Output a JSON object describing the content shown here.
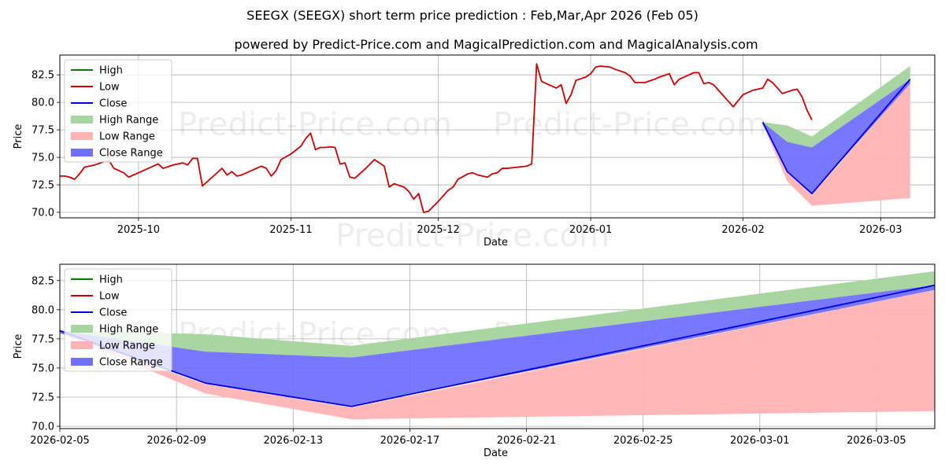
{
  "title": "SEEGX (SEEGX) short term price prediction : Feb,Mar,Apr 2026 (Feb 05)",
  "subtitle": "powered by Predict-Price.com and MagicalPrediction.com and MagicalAnalysis.com",
  "watermark": "Predict-Price.com",
  "colors": {
    "high": "#008000",
    "low": "#cc0000",
    "close": "#0000dd",
    "high_range": "#a8d5a0",
    "low_range": "#ffb3b3",
    "close_range": "#7070ff",
    "grid": "#b0b0b0"
  },
  "chart_data": [
    {
      "type": "line",
      "panel": "top",
      "xlabel": "Date",
      "ylabel": "Price",
      "x_range": [
        "2025-09-15",
        "2026-03-12"
      ],
      "ylim": [
        69.5,
        84.3
      ],
      "yticks": [
        70.0,
        72.5,
        75.0,
        77.5,
        80.0,
        82.5
      ],
      "ytick_labels": [
        "70.0",
        "72.5",
        "75.0",
        "77.5",
        "80.0",
        "82.5"
      ],
      "xticks": [
        "2025-10-01",
        "2025-11-01",
        "2025-12-01",
        "2026-01-01",
        "2026-02-01",
        "2026-03-01"
      ],
      "xtick_labels": [
        "2025-10",
        "2025-11",
        "2025-12",
        "2026-01",
        "2026-02",
        "2026-03"
      ],
      "grid": true,
      "legend_position": "top-left",
      "legend": [
        "High",
        "Low",
        "Close",
        "High Range",
        "Low Range",
        "Close Range"
      ],
      "history": [
        [
          "2025-09-15",
          73.3
        ],
        [
          "2025-09-16",
          73.3
        ],
        [
          "2025-09-17",
          73.2
        ],
        [
          "2025-09-18",
          73.0
        ],
        [
          "2025-09-19",
          73.5
        ],
        [
          "2025-09-20",
          74.1
        ],
        [
          "2025-09-22",
          74.3
        ],
        [
          "2025-09-24",
          74.6
        ],
        [
          "2025-09-25",
          74.7
        ],
        [
          "2025-09-26",
          74.0
        ],
        [
          "2025-09-28",
          73.6
        ],
        [
          "2025-09-29",
          73.2
        ],
        [
          "2025-10-01",
          73.6
        ],
        [
          "2025-10-03",
          74.0
        ],
        [
          "2025-10-05",
          74.4
        ],
        [
          "2025-10-06",
          74.0
        ],
        [
          "2025-10-08",
          74.3
        ],
        [
          "2025-10-10",
          74.5
        ],
        [
          "2025-10-11",
          74.3
        ],
        [
          "2025-10-12",
          74.9
        ],
        [
          "2025-10-13",
          74.9
        ],
        [
          "2025-10-14",
          72.4
        ],
        [
          "2025-10-16",
          73.2
        ],
        [
          "2025-10-18",
          74.0
        ],
        [
          "2025-10-19",
          73.4
        ],
        [
          "2025-10-20",
          73.7
        ],
        [
          "2025-10-21",
          73.3
        ],
        [
          "2025-10-22",
          73.4
        ],
        [
          "2025-10-24",
          73.8
        ],
        [
          "2025-10-26",
          74.2
        ],
        [
          "2025-10-27",
          74.0
        ],
        [
          "2025-10-28",
          73.3
        ],
        [
          "2025-10-29",
          73.8
        ],
        [
          "2025-10-30",
          74.8
        ],
        [
          "2025-11-01",
          75.3
        ],
        [
          "2025-11-03",
          76.0
        ],
        [
          "2025-11-04",
          76.7
        ],
        [
          "2025-11-05",
          77.2
        ],
        [
          "2025-11-06",
          75.7
        ],
        [
          "2025-11-07",
          75.9
        ],
        [
          "2025-11-08",
          75.9
        ],
        [
          "2025-11-09",
          75.95
        ],
        [
          "2025-11-10",
          75.9
        ],
        [
          "2025-11-11",
          74.4
        ],
        [
          "2025-11-12",
          74.5
        ],
        [
          "2025-11-13",
          73.2
        ],
        [
          "2025-11-14",
          73.1
        ],
        [
          "2025-11-16",
          73.9
        ],
        [
          "2025-11-18",
          74.8
        ],
        [
          "2025-11-19",
          74.5
        ],
        [
          "2025-11-20",
          74.2
        ],
        [
          "2025-11-21",
          72.3
        ],
        [
          "2025-11-22",
          72.6
        ],
        [
          "2025-11-24",
          72.3
        ],
        [
          "2025-11-25",
          71.9
        ],
        [
          "2025-11-26",
          71.2
        ],
        [
          "2025-11-27",
          71.7
        ],
        [
          "2025-11-28",
          70.0
        ],
        [
          "2025-11-29",
          70.1
        ],
        [
          "2025-12-01",
          71.0
        ],
        [
          "2025-12-03",
          72.0
        ],
        [
          "2025-12-04",
          72.3
        ],
        [
          "2025-12-05",
          73.0
        ],
        [
          "2025-12-07",
          73.5
        ],
        [
          "2025-12-08",
          73.6
        ],
        [
          "2025-12-09",
          73.4
        ],
        [
          "2025-12-11",
          73.2
        ],
        [
          "2025-12-12",
          73.5
        ],
        [
          "2025-12-13",
          73.6
        ],
        [
          "2025-12-14",
          74.0
        ],
        [
          "2025-12-15",
          74.0
        ],
        [
          "2025-12-17",
          74.1
        ],
        [
          "2025-12-19",
          74.2
        ],
        [
          "2025-12-20",
          74.4
        ],
        [
          "2025-12-21",
          83.5
        ],
        [
          "2025-12-22",
          81.9
        ],
        [
          "2025-12-24",
          81.5
        ],
        [
          "2025-12-25",
          81.3
        ],
        [
          "2025-12-26",
          81.6
        ],
        [
          "2025-12-27",
          79.9
        ],
        [
          "2025-12-28",
          80.7
        ],
        [
          "2025-12-29",
          82.0
        ],
        [
          "2025-12-31",
          82.3
        ],
        [
          "2026-01-01",
          82.6
        ],
        [
          "2026-01-02",
          83.2
        ],
        [
          "2026-01-03",
          83.3
        ],
        [
          "2026-01-05",
          83.2
        ],
        [
          "2026-01-06",
          83.0
        ],
        [
          "2026-01-08",
          82.7
        ],
        [
          "2026-01-09",
          82.4
        ],
        [
          "2026-01-10",
          81.8
        ],
        [
          "2026-01-12",
          81.8
        ],
        [
          "2026-01-14",
          82.1
        ],
        [
          "2026-01-15",
          82.3
        ],
        [
          "2026-01-17",
          82.6
        ],
        [
          "2026-01-18",
          81.6
        ],
        [
          "2026-01-19",
          82.1
        ],
        [
          "2026-01-21",
          82.5
        ],
        [
          "2026-01-22",
          82.7
        ],
        [
          "2026-01-23",
          82.7
        ],
        [
          "2026-01-24",
          81.7
        ],
        [
          "2026-01-25",
          81.8
        ],
        [
          "2026-01-26",
          81.6
        ],
        [
          "2026-01-28",
          80.6
        ],
        [
          "2026-01-30",
          79.6
        ],
        [
          "2026-02-01",
          80.7
        ],
        [
          "2026-02-03",
          81.1
        ],
        [
          "2026-02-05",
          81.3
        ],
        [
          "2026-02-06",
          82.1
        ],
        [
          "2026-02-07",
          81.8
        ],
        [
          "2026-02-09",
          80.8
        ],
        [
          "2026-02-11",
          81.1
        ],
        [
          "2026-02-12",
          81.2
        ],
        [
          "2026-02-13",
          80.5
        ],
        [
          "2026-02-14",
          79.3
        ],
        [
          "2026-02-15",
          78.4
        ]
      ],
      "forecast": {
        "x": [
          "2026-02-05",
          "2026-02-10",
          "2026-02-15",
          "2026-03-07"
        ],
        "close": [
          78.2,
          73.7,
          71.7,
          82.1
        ],
        "high_upper": [
          78.2,
          77.9,
          76.9,
          83.3
        ],
        "high_lower": [
          78.2,
          76.4,
          75.9,
          82.1
        ],
        "low_upper": [
          78.0,
          73.6,
          71.6,
          81.7
        ],
        "low_lower": [
          78.0,
          72.8,
          70.6,
          71.3
        ],
        "close_upper": [
          78.2,
          76.4,
          75.9,
          82.1
        ],
        "close_lower": [
          78.0,
          73.7,
          71.7,
          81.7
        ]
      }
    },
    {
      "type": "line",
      "panel": "bottom",
      "xlabel": "Date",
      "ylabel": "Price",
      "x_range": [
        "2026-02-05",
        "2026-03-07"
      ],
      "ylim": [
        69.8,
        83.9
      ],
      "yticks": [
        70.0,
        72.5,
        75.0,
        77.5,
        80.0,
        82.5
      ],
      "ytick_labels": [
        "70.0",
        "72.5",
        "75.0",
        "77.5",
        "80.0",
        "82.5"
      ],
      "xticks": [
        "2026-02-05",
        "2026-02-09",
        "2026-02-13",
        "2026-02-17",
        "2026-02-21",
        "2026-02-25",
        "2026-03-01",
        "2026-03-05"
      ],
      "xtick_labels": [
        "2026-02-05",
        "2026-02-09",
        "2026-02-13",
        "2026-02-17",
        "2026-02-21",
        "2026-02-25",
        "2026-03-01",
        "2026-03-05"
      ],
      "grid": true,
      "legend_position": "top-left",
      "legend": [
        "High",
        "Low",
        "Close",
        "High Range",
        "Low Range",
        "Close Range"
      ]
    }
  ]
}
